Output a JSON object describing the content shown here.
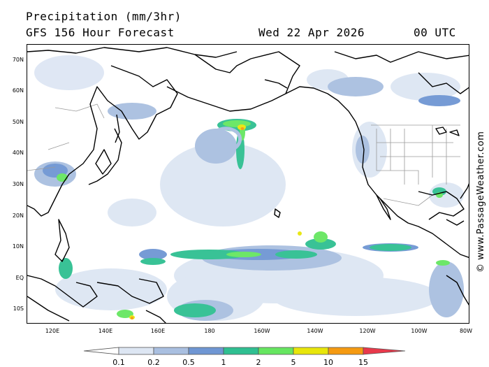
{
  "header": {
    "title": "Precipitation (mm/3hr)",
    "subtitle": "GFS 156 Hour Forecast",
    "date": "Wed 22 Apr 2026",
    "time": "00 UTC"
  },
  "watermark": "© www.PassageWeather.com",
  "map": {
    "lat_labels": [
      "70N",
      "60N",
      "50N",
      "40N",
      "30N",
      "20N",
      "10N",
      "EQ",
      "10S"
    ],
    "lon_labels": [
      "120E",
      "140E",
      "160E",
      "180",
      "160W",
      "140W",
      "120W",
      "100W",
      "80W"
    ],
    "land_color": "#ffffff",
    "coast_color": "#000000",
    "border_color": "#9a9a9a"
  },
  "legend": {
    "labels": [
      "0.1",
      "0.2",
      "0.5",
      "1",
      "2",
      "5",
      "10",
      "15"
    ],
    "colors": [
      "#ffffff",
      "#dde6f3",
      "#a9bfe0",
      "#6f96d3",
      "#2fbf91",
      "#66e660",
      "#e8e60a",
      "#f59a11",
      "#e8394b"
    ]
  }
}
